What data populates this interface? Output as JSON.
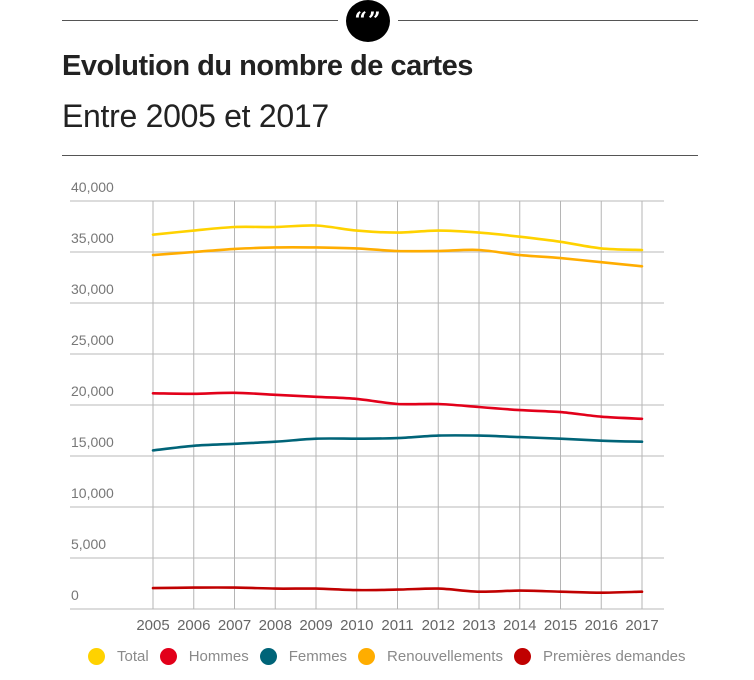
{
  "header": {
    "quote_icon": "quote-marks-icon",
    "quote_glyph": "“”",
    "title": "Evolution du nombre de cartes",
    "subtitle": "Entre 2005 et 2017"
  },
  "chart_data": {
    "type": "line",
    "title": "Evolution du nombre de cartes",
    "subtitle": "Entre 2005 et 2017",
    "xlabel": "",
    "ylabel": "",
    "x": [
      2005,
      2006,
      2007,
      2008,
      2009,
      2010,
      2011,
      2012,
      2013,
      2014,
      2015,
      2016,
      2017
    ],
    "x_tick_labels": [
      "2005",
      "2006",
      "2007",
      "2008",
      "2009",
      "2010",
      "2011",
      "2012",
      "2013",
      "2014",
      "2015",
      "2016",
      "2017"
    ],
    "ylim": [
      0,
      40000
    ],
    "y_ticks": [
      0,
      5000,
      10000,
      15000,
      20000,
      25000,
      30000,
      35000,
      40000
    ],
    "y_tick_labels": [
      "0",
      "5,000",
      "10,000",
      "15,000",
      "20,000",
      "25,000",
      "30,000",
      "35,000",
      "40,000"
    ],
    "grid": true,
    "legend_position": "bottom",
    "series": [
      {
        "name": "Total",
        "color": "#FFD200",
        "values": [
          36700,
          37100,
          37450,
          37450,
          37600,
          37100,
          36900,
          37100,
          36900,
          36500,
          36000,
          35350,
          35200
        ]
      },
      {
        "name": "Hommes",
        "color": "#E2001A",
        "values": [
          21150,
          21100,
          21200,
          21000,
          20800,
          20600,
          20100,
          20100,
          19800,
          19500,
          19300,
          18850,
          18650
        ]
      },
      {
        "name": "Femmes",
        "color": "#006478",
        "values": [
          15550,
          16000,
          16200,
          16400,
          16700,
          16700,
          16750,
          17000,
          17000,
          16850,
          16700,
          16500,
          16400
        ]
      },
      {
        "name": "Renouvellements",
        "color": "#FFAD00",
        "values": [
          34700,
          35000,
          35300,
          35450,
          35450,
          35350,
          35100,
          35100,
          35200,
          34700,
          34400,
          34000,
          33600
        ]
      },
      {
        "name": "Premières demandes",
        "color": "#C00000",
        "values": [
          2050,
          2100,
          2100,
          2000,
          2000,
          1850,
          1900,
          2000,
          1700,
          1800,
          1700,
          1600,
          1700
        ]
      }
    ]
  }
}
